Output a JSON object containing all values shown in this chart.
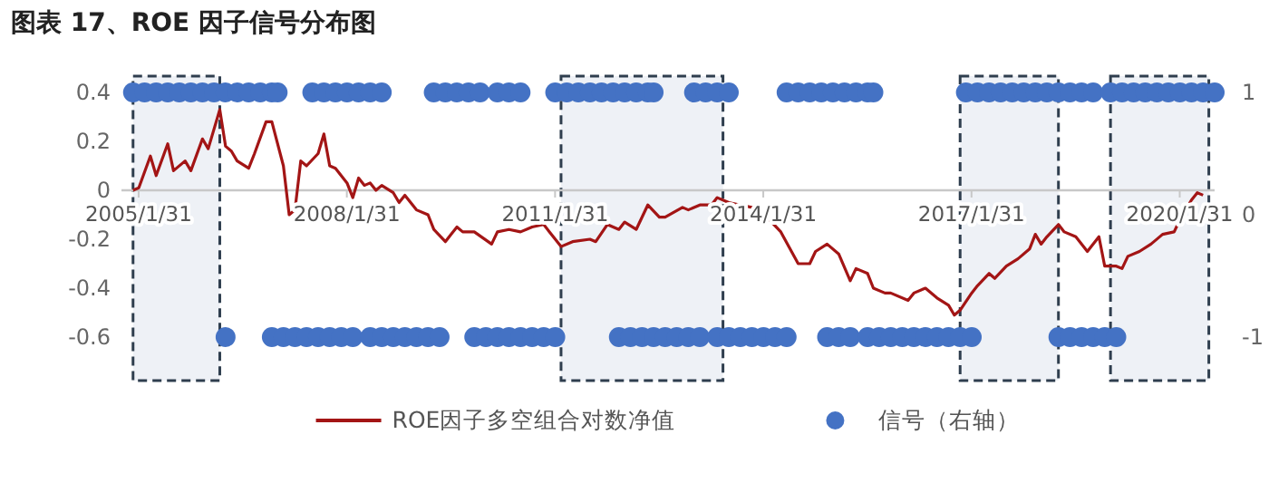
{
  "chart_data": {
    "type": "line",
    "title": "图表 17、ROE 因子信号分布图",
    "xlim": [
      "2004-11",
      "2020-08"
    ],
    "xticks": [
      {
        "value": "2005-01-31",
        "label": "2005/1/31"
      },
      {
        "value": "2008-01-31",
        "label": "2008/1/31"
      },
      {
        "value": "2011-01-31",
        "label": "2011/1/31"
      },
      {
        "value": "2014-01-31",
        "label": "2014/1/31"
      },
      {
        "value": "2017-01-31",
        "label": "2017/1/31"
      },
      {
        "value": "2020-01-31",
        "label": "2020/1/31"
      }
    ],
    "ylim": [
      -0.6,
      0.4
    ],
    "yticks": [
      0.4,
      0.2,
      0,
      -0.2,
      -0.4,
      -0.6
    ],
    "y2lim": [
      -1,
      1
    ],
    "y2ticks": [
      1,
      0,
      -1
    ],
    "legend": "bottom",
    "grid": false,
    "bands": [
      {
        "axis": "x",
        "from": "2005-01",
        "to": "2006-04",
        "color": "#2f3e4e"
      },
      {
        "axis": "x",
        "from": "2011-03",
        "to": "2013-07",
        "color": "#2f3e4e"
      },
      {
        "axis": "x",
        "from": "2016-12",
        "to": "2018-05",
        "color": "#2f3e4e"
      },
      {
        "axis": "x",
        "from": "2019-02",
        "to": "2020-07",
        "color": "#2f3e4e"
      }
    ],
    "series": [
      {
        "name": "ROE因子多空组合对数净值",
        "color": "#a31515",
        "marker": "none",
        "line_style": "solid",
        "x": [
          "2005-01",
          "2005-02",
          "2005-04",
          "2005-05",
          "2005-07",
          "2005-08",
          "2005-10",
          "2005-11",
          "2006-01",
          "2006-02",
          "2006-04",
          "2006-05",
          "2006-06",
          "2006-07",
          "2006-09",
          "2006-10",
          "2006-12",
          "2007-01",
          "2007-03",
          "2007-04",
          "2007-05",
          "2007-06",
          "2007-07",
          "2007-09",
          "2007-10",
          "2007-11",
          "2007-12",
          "2008-02",
          "2008-03",
          "2008-04",
          "2008-05",
          "2008-06",
          "2008-07",
          "2008-08",
          "2008-10",
          "2008-11",
          "2008-12",
          "2009-02",
          "2009-04",
          "2009-05",
          "2009-07",
          "2009-08",
          "2009-09",
          "2009-10",
          "2009-12",
          "2010-03",
          "2010-04",
          "2010-06",
          "2010-08",
          "2010-10",
          "2010-12",
          "2011-01",
          "2011-03",
          "2011-05",
          "2011-08",
          "2011-09",
          "2011-11",
          "2012-01",
          "2012-02",
          "2012-04",
          "2012-06",
          "2012-08",
          "2012-09",
          "2012-12",
          "2013-01",
          "2013-03",
          "2013-05",
          "2013-06",
          "2013-08",
          "2013-10",
          "2013-12",
          "2014-03",
          "2014-05",
          "2014-08",
          "2014-10",
          "2014-11",
          "2015-01",
          "2015-03",
          "2015-05",
          "2015-06",
          "2015-08",
          "2015-09",
          "2015-11",
          "2015-12",
          "2016-03",
          "2016-04",
          "2016-06",
          "2016-08",
          "2016-10",
          "2016-11",
          "2016-12",
          "2017-02",
          "2017-03",
          "2017-05",
          "2017-06",
          "2017-08",
          "2017-10",
          "2017-12",
          "2018-01",
          "2018-02",
          "2018-03",
          "2018-05",
          "2018-06",
          "2018-08",
          "2018-10",
          "2018-12",
          "2019-01",
          "2019-03",
          "2019-04",
          "2019-05",
          "2019-07",
          "2019-09",
          "2019-11",
          "2020-01",
          "2020-02",
          "2020-04",
          "2020-05",
          "2020-06"
        ],
        "values": [
          0,
          0.01,
          0.14,
          0.06,
          0.19,
          0.08,
          0.12,
          0.08,
          0.21,
          0.17,
          0.33,
          0.18,
          0.16,
          0.12,
          0.09,
          0.15,
          0.28,
          0.28,
          0.1,
          -0.1,
          -0.08,
          0.12,
          0.1,
          0.15,
          0.23,
          0.1,
          0.09,
          0.03,
          -0.03,
          0.05,
          0.02,
          0.03,
          0,
          0.02,
          -0.01,
          -0.05,
          -0.02,
          -0.08,
          -0.1,
          -0.16,
          -0.21,
          -0.18,
          -0.15,
          -0.17,
          -0.17,
          -0.22,
          -0.17,
          -0.16,
          -0.17,
          -0.15,
          -0.14,
          -0.17,
          -0.23,
          -0.21,
          -0.2,
          -0.21,
          -0.14,
          -0.16,
          -0.13,
          -0.16,
          -0.06,
          -0.11,
          -0.11,
          -0.07,
          -0.08,
          -0.06,
          -0.06,
          -0.03,
          -0.05,
          -0.06,
          -0.07,
          -0.12,
          -0.17,
          -0.3,
          -0.3,
          -0.25,
          -0.22,
          -0.26,
          -0.37,
          -0.32,
          -0.34,
          -0.4,
          -0.42,
          -0.42,
          -0.45,
          -0.42,
          -0.4,
          -0.44,
          -0.47,
          -0.51,
          -0.49,
          -0.42,
          -0.39,
          -0.34,
          -0.36,
          -0.31,
          -0.28,
          -0.24,
          -0.18,
          -0.22,
          -0.19,
          -0.14,
          -0.17,
          -0.19,
          -0.25,
          -0.19,
          -0.31,
          -0.31,
          -0.32,
          -0.27,
          -0.25,
          -0.22,
          -0.18,
          -0.17,
          -0.12,
          -0.04,
          -0.01,
          -0.02
        ]
      },
      {
        "name": "信号（右轴）",
        "type": "scatter",
        "axis": "y2",
        "color": "#4472c4",
        "marker": "circle",
        "x": [
          "2005-01",
          "2005-03",
          "2005-05",
          "2005-07",
          "2005-09",
          "2005-11",
          "2006-01",
          "2006-03",
          "2006-05",
          "2006-07",
          "2006-09",
          "2006-11",
          "2007-01",
          "2007-02",
          "2007-08",
          "2007-10",
          "2007-12",
          "2008-02",
          "2008-04",
          "2008-06",
          "2008-08",
          "2009-05",
          "2009-07",
          "2009-09",
          "2009-11",
          "2010-01",
          "2010-04",
          "2010-06",
          "2010-08",
          "2011-02",
          "2011-04",
          "2011-06",
          "2011-08",
          "2011-10",
          "2011-12",
          "2012-02",
          "2012-04",
          "2012-06",
          "2012-07",
          "2013-02",
          "2013-04",
          "2013-06",
          "2013-08",
          "2014-06",
          "2014-08",
          "2014-10",
          "2014-12",
          "2015-02",
          "2015-04",
          "2015-06",
          "2015-08",
          "2015-09",
          "2017-01",
          "2017-03",
          "2017-05",
          "2017-07",
          "2017-09",
          "2017-11",
          "2018-01",
          "2018-03",
          "2018-05",
          "2018-07",
          "2018-09",
          "2018-11",
          "2019-02",
          "2019-04",
          "2019-06",
          "2019-08",
          "2019-10",
          "2019-12",
          "2020-02",
          "2020-04",
          "2020-06",
          "2020-08",
          "2006-05",
          "2007-01",
          "2007-03",
          "2007-05",
          "2007-07",
          "2007-09",
          "2007-11",
          "2008-01",
          "2008-03",
          "2008-06",
          "2008-08",
          "2008-10",
          "2008-12",
          "2009-02",
          "2009-04",
          "2009-06",
          "2009-12",
          "2010-02",
          "2010-04",
          "2010-06",
          "2010-08",
          "2010-10",
          "2010-12",
          "2011-02",
          "2012-01",
          "2012-03",
          "2012-05",
          "2012-07",
          "2012-09",
          "2012-11",
          "2013-01",
          "2013-03",
          "2013-06",
          "2013-08",
          "2013-10",
          "2013-12",
          "2014-02",
          "2014-04",
          "2014-06",
          "2015-01",
          "2015-03",
          "2015-05",
          "2015-08",
          "2015-10",
          "2015-12",
          "2016-02",
          "2016-04",
          "2016-06",
          "2016-08",
          "2016-10",
          "2016-12",
          "2017-02",
          "2018-05",
          "2018-07",
          "2018-09",
          "2018-11",
          "2019-01",
          "2019-03"
        ],
        "values": [
          1,
          1,
          1,
          1,
          1,
          1,
          1,
          1,
          1,
          1,
          1,
          1,
          1,
          1,
          1,
          1,
          1,
          1,
          1,
          1,
          1,
          1,
          1,
          1,
          1,
          1,
          1,
          1,
          1,
          1,
          1,
          1,
          1,
          1,
          1,
          1,
          1,
          1,
          1,
          1,
          1,
          1,
          1,
          1,
          1,
          1,
          1,
          1,
          1,
          1,
          1,
          1,
          1,
          1,
          1,
          1,
          1,
          1,
          1,
          1,
          1,
          1,
          1,
          1,
          1,
          1,
          1,
          1,
          1,
          1,
          1,
          1,
          1,
          1,
          -1,
          -1,
          -1,
          -1,
          -1,
          -1,
          -1,
          -1,
          -1,
          -1,
          -1,
          -1,
          -1,
          -1,
          -1,
          -1,
          -1,
          -1,
          -1,
          -1,
          -1,
          -1,
          -1,
          -1,
          -1,
          -1,
          -1,
          -1,
          -1,
          -1,
          -1,
          -1,
          -1,
          -1,
          -1,
          -1,
          -1,
          -1,
          -1,
          -1,
          -1,
          -1,
          -1,
          -1,
          -1,
          -1,
          -1,
          -1,
          -1,
          -1,
          -1,
          -1,
          -1,
          -1,
          -1,
          -1,
          -1,
          -1
        ]
      }
    ]
  }
}
